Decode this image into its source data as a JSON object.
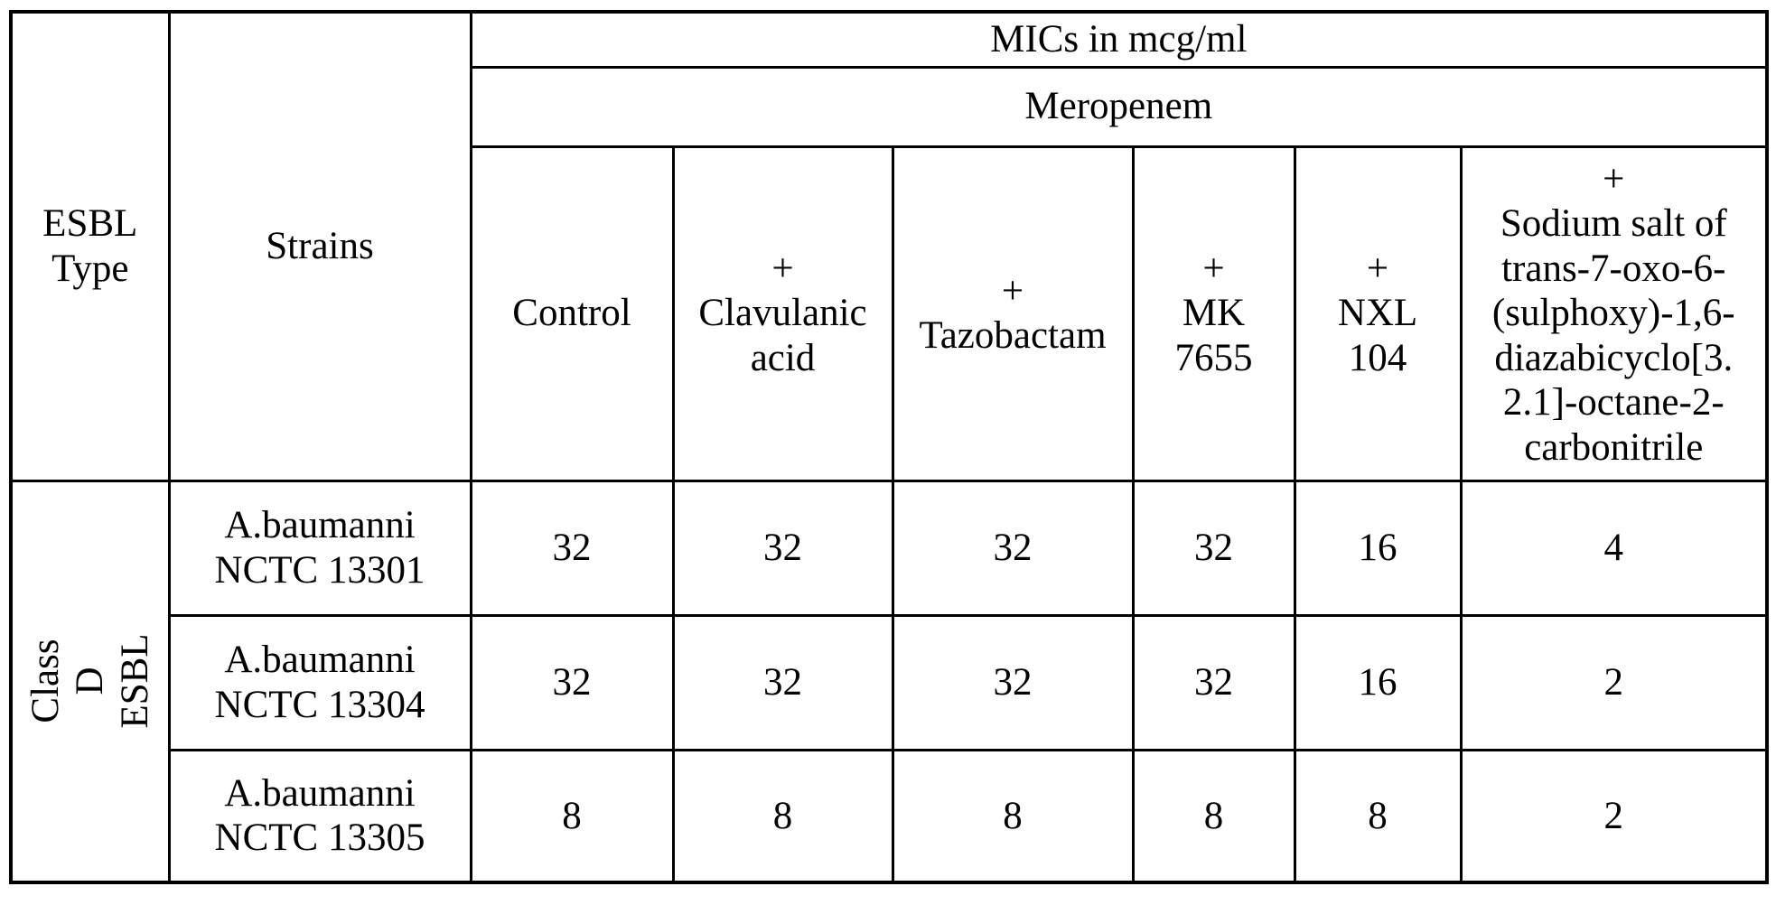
{
  "table": {
    "esbl_type_header": "ESBL\nType",
    "strains_header": "Strains",
    "mics_title": "MICs in mcg/ml",
    "drug": "Meropenem",
    "treatments": [
      "Control",
      "+\nClavulanic\nacid",
      "+\nTazobactam",
      "+\nMK\n7655",
      "+\nNXL\n104",
      "+\nSodium salt of\ntrans-7-oxo-6-\n(sulphoxy)-1,6-\ndiazabicyclo[3.\n2.1]-octane-2-\ncarbonitrile"
    ],
    "row_group_label": "Class D\nESBL",
    "rows": [
      {
        "strain": "A.baumanni\nNCTC 13301",
        "values": [
          "32",
          "32",
          "32",
          "32",
          "16",
          "4"
        ]
      },
      {
        "strain": "A.baumanni\nNCTC 13304",
        "values": [
          "32",
          "32",
          "32",
          "32",
          "16",
          "2"
        ]
      },
      {
        "strain": "A.baumanni\nNCTC 13305",
        "values": [
          "8",
          "8",
          "8",
          "8",
          "8",
          "2"
        ]
      }
    ],
    "colors": {
      "text": "#000000",
      "border": "#000000",
      "background": "#ffffff"
    }
  }
}
